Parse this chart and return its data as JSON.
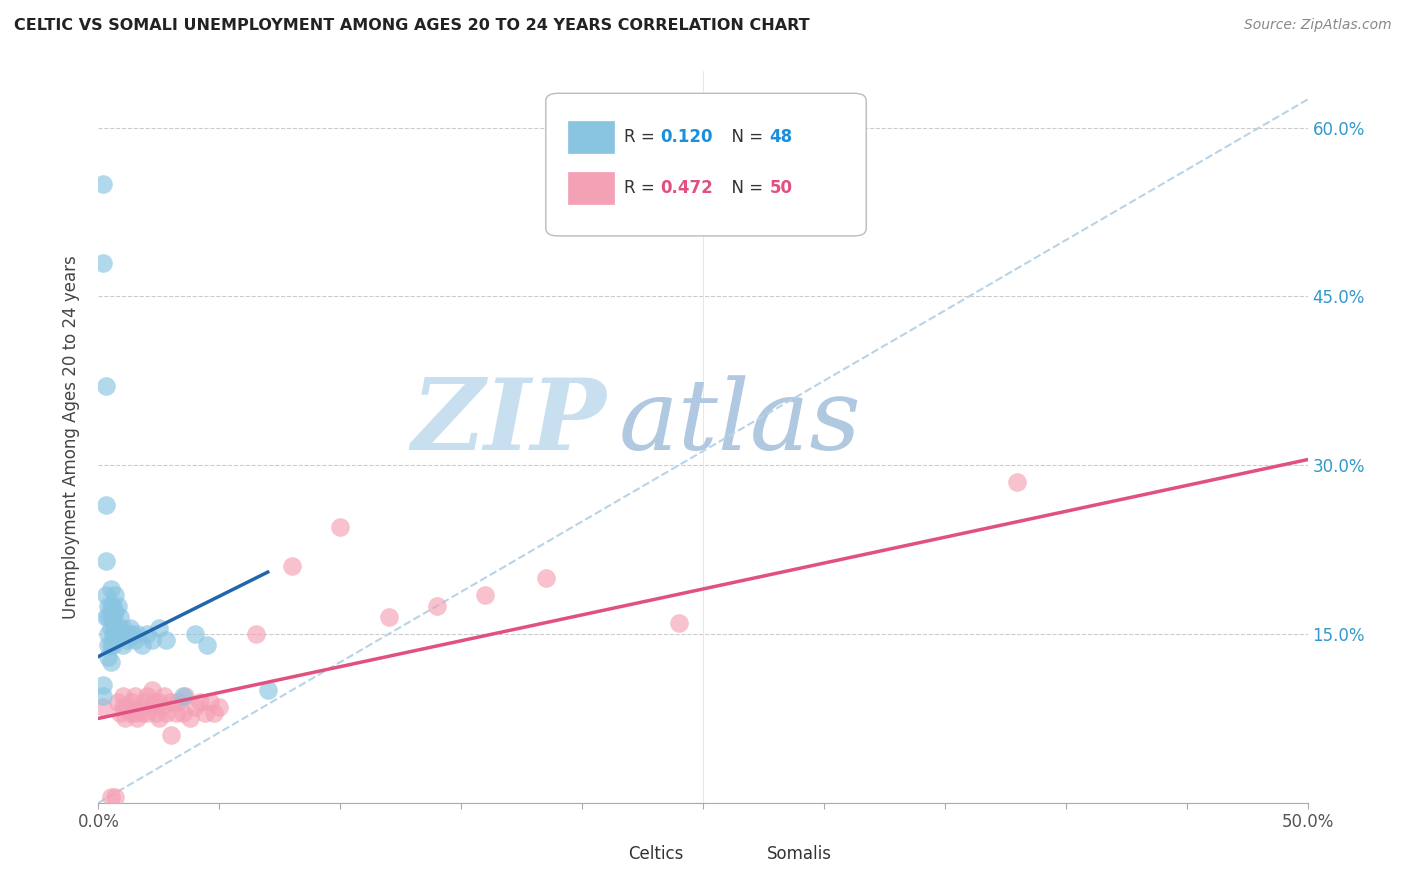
{
  "title": "CELTIC VS SOMALI UNEMPLOYMENT AMONG AGES 20 TO 24 YEARS CORRELATION CHART",
  "source": "Source: ZipAtlas.com",
  "ylabel": "Unemployment Among Ages 20 to 24 years",
  "xlim": [
    0.0,
    0.5
  ],
  "ylim": [
    0.0,
    0.65
  ],
  "celtic_color": "#89c4e1",
  "somali_color": "#f4a0b5",
  "celtic_line_color": "#2166ac",
  "somali_line_color": "#e05080",
  "ref_line_color": "#b8d4e8",
  "watermark_zip": "ZIP",
  "watermark_atlas": "atlas",
  "watermark_color_zip": "#c8dff0",
  "watermark_color_atlas": "#b0c8e0",
  "legend_r_celtic": "0.120",
  "legend_n_celtic": "48",
  "legend_r_somali": "0.472",
  "legend_n_somali": "50",
  "celtic_line_x": [
    0.0,
    0.07
  ],
  "celtic_line_y": [
    0.13,
    0.205
  ],
  "somali_line_x": [
    0.0,
    0.5
  ],
  "somali_line_y": [
    0.075,
    0.305
  ],
  "ref_line_x": [
    0.0,
    0.5
  ],
  "ref_line_y": [
    0.0,
    0.625
  ],
  "celtics_x": [
    0.002,
    0.002,
    0.002,
    0.002,
    0.003,
    0.003,
    0.003,
    0.003,
    0.003,
    0.004,
    0.004,
    0.004,
    0.004,
    0.004,
    0.005,
    0.005,
    0.005,
    0.005,
    0.005,
    0.005,
    0.006,
    0.006,
    0.006,
    0.006,
    0.007,
    0.007,
    0.007,
    0.008,
    0.008,
    0.009,
    0.009,
    0.01,
    0.01,
    0.011,
    0.012,
    0.013,
    0.014,
    0.015,
    0.016,
    0.018,
    0.02,
    0.022,
    0.025,
    0.028,
    0.035,
    0.04,
    0.045,
    0.07
  ],
  "celtics_y": [
    0.55,
    0.48,
    0.105,
    0.095,
    0.37,
    0.265,
    0.215,
    0.185,
    0.165,
    0.175,
    0.165,
    0.15,
    0.14,
    0.13,
    0.19,
    0.175,
    0.165,
    0.155,
    0.14,
    0.125,
    0.175,
    0.165,
    0.15,
    0.14,
    0.185,
    0.17,
    0.155,
    0.175,
    0.155,
    0.165,
    0.15,
    0.155,
    0.14,
    0.15,
    0.145,
    0.155,
    0.15,
    0.145,
    0.15,
    0.14,
    0.15,
    0.145,
    0.155,
    0.145,
    0.095,
    0.15,
    0.14,
    0.1
  ],
  "somalis_x": [
    0.002,
    0.005,
    0.007,
    0.008,
    0.009,
    0.01,
    0.01,
    0.011,
    0.012,
    0.013,
    0.014,
    0.015,
    0.015,
    0.016,
    0.017,
    0.018,
    0.019,
    0.02,
    0.02,
    0.022,
    0.022,
    0.023,
    0.024,
    0.025,
    0.025,
    0.026,
    0.027,
    0.028,
    0.03,
    0.03,
    0.032,
    0.033,
    0.035,
    0.036,
    0.038,
    0.04,
    0.042,
    0.044,
    0.046,
    0.048,
    0.05,
    0.065,
    0.08,
    0.1,
    0.12,
    0.14,
    0.16,
    0.185,
    0.24,
    0.38
  ],
  "somalis_y": [
    0.085,
    0.005,
    0.005,
    0.09,
    0.08,
    0.085,
    0.095,
    0.075,
    0.085,
    0.08,
    0.09,
    0.08,
    0.095,
    0.075,
    0.085,
    0.08,
    0.09,
    0.08,
    0.095,
    0.085,
    0.1,
    0.09,
    0.08,
    0.09,
    0.075,
    0.085,
    0.095,
    0.08,
    0.09,
    0.06,
    0.08,
    0.09,
    0.08,
    0.095,
    0.075,
    0.085,
    0.09,
    0.08,
    0.09,
    0.08,
    0.085,
    0.15,
    0.21,
    0.245,
    0.165,
    0.175,
    0.185,
    0.2,
    0.16,
    0.285
  ]
}
